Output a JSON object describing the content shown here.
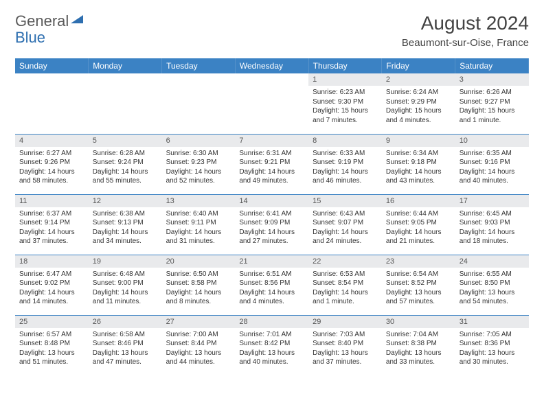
{
  "brand": {
    "part1": "General",
    "part2": "Blue",
    "color1": "#6a6a6a",
    "color2": "#2e6fb0",
    "triangle_color": "#2e6fb0"
  },
  "title": "August 2024",
  "location": "Beaumont-sur-Oise, France",
  "colors": {
    "header_bg": "#3b82c4",
    "header_text": "#ffffff",
    "border": "#3b82c4",
    "daynum_bg": "#e9eaec",
    "text": "#333333"
  },
  "weekdays": [
    "Sunday",
    "Monday",
    "Tuesday",
    "Wednesday",
    "Thursday",
    "Friday",
    "Saturday"
  ],
  "weeks": [
    [
      {
        "empty": true
      },
      {
        "empty": true
      },
      {
        "empty": true
      },
      {
        "empty": true
      },
      {
        "day": "1",
        "sunrise": "Sunrise: 6:23 AM",
        "sunset": "Sunset: 9:30 PM",
        "daylight": "Daylight: 15 hours and 7 minutes."
      },
      {
        "day": "2",
        "sunrise": "Sunrise: 6:24 AM",
        "sunset": "Sunset: 9:29 PM",
        "daylight": "Daylight: 15 hours and 4 minutes."
      },
      {
        "day": "3",
        "sunrise": "Sunrise: 6:26 AM",
        "sunset": "Sunset: 9:27 PM",
        "daylight": "Daylight: 15 hours and 1 minute."
      }
    ],
    [
      {
        "day": "4",
        "sunrise": "Sunrise: 6:27 AM",
        "sunset": "Sunset: 9:26 PM",
        "daylight": "Daylight: 14 hours and 58 minutes."
      },
      {
        "day": "5",
        "sunrise": "Sunrise: 6:28 AM",
        "sunset": "Sunset: 9:24 PM",
        "daylight": "Daylight: 14 hours and 55 minutes."
      },
      {
        "day": "6",
        "sunrise": "Sunrise: 6:30 AM",
        "sunset": "Sunset: 9:23 PM",
        "daylight": "Daylight: 14 hours and 52 minutes."
      },
      {
        "day": "7",
        "sunrise": "Sunrise: 6:31 AM",
        "sunset": "Sunset: 9:21 PM",
        "daylight": "Daylight: 14 hours and 49 minutes."
      },
      {
        "day": "8",
        "sunrise": "Sunrise: 6:33 AM",
        "sunset": "Sunset: 9:19 PM",
        "daylight": "Daylight: 14 hours and 46 minutes."
      },
      {
        "day": "9",
        "sunrise": "Sunrise: 6:34 AM",
        "sunset": "Sunset: 9:18 PM",
        "daylight": "Daylight: 14 hours and 43 minutes."
      },
      {
        "day": "10",
        "sunrise": "Sunrise: 6:35 AM",
        "sunset": "Sunset: 9:16 PM",
        "daylight": "Daylight: 14 hours and 40 minutes."
      }
    ],
    [
      {
        "day": "11",
        "sunrise": "Sunrise: 6:37 AM",
        "sunset": "Sunset: 9:14 PM",
        "daylight": "Daylight: 14 hours and 37 minutes."
      },
      {
        "day": "12",
        "sunrise": "Sunrise: 6:38 AM",
        "sunset": "Sunset: 9:13 PM",
        "daylight": "Daylight: 14 hours and 34 minutes."
      },
      {
        "day": "13",
        "sunrise": "Sunrise: 6:40 AM",
        "sunset": "Sunset: 9:11 PM",
        "daylight": "Daylight: 14 hours and 31 minutes."
      },
      {
        "day": "14",
        "sunrise": "Sunrise: 6:41 AM",
        "sunset": "Sunset: 9:09 PM",
        "daylight": "Daylight: 14 hours and 27 minutes."
      },
      {
        "day": "15",
        "sunrise": "Sunrise: 6:43 AM",
        "sunset": "Sunset: 9:07 PM",
        "daylight": "Daylight: 14 hours and 24 minutes."
      },
      {
        "day": "16",
        "sunrise": "Sunrise: 6:44 AM",
        "sunset": "Sunset: 9:05 PM",
        "daylight": "Daylight: 14 hours and 21 minutes."
      },
      {
        "day": "17",
        "sunrise": "Sunrise: 6:45 AM",
        "sunset": "Sunset: 9:03 PM",
        "daylight": "Daylight: 14 hours and 18 minutes."
      }
    ],
    [
      {
        "day": "18",
        "sunrise": "Sunrise: 6:47 AM",
        "sunset": "Sunset: 9:02 PM",
        "daylight": "Daylight: 14 hours and 14 minutes."
      },
      {
        "day": "19",
        "sunrise": "Sunrise: 6:48 AM",
        "sunset": "Sunset: 9:00 PM",
        "daylight": "Daylight: 14 hours and 11 minutes."
      },
      {
        "day": "20",
        "sunrise": "Sunrise: 6:50 AM",
        "sunset": "Sunset: 8:58 PM",
        "daylight": "Daylight: 14 hours and 8 minutes."
      },
      {
        "day": "21",
        "sunrise": "Sunrise: 6:51 AM",
        "sunset": "Sunset: 8:56 PM",
        "daylight": "Daylight: 14 hours and 4 minutes."
      },
      {
        "day": "22",
        "sunrise": "Sunrise: 6:53 AM",
        "sunset": "Sunset: 8:54 PM",
        "daylight": "Daylight: 14 hours and 1 minute."
      },
      {
        "day": "23",
        "sunrise": "Sunrise: 6:54 AM",
        "sunset": "Sunset: 8:52 PM",
        "daylight": "Daylight: 13 hours and 57 minutes."
      },
      {
        "day": "24",
        "sunrise": "Sunrise: 6:55 AM",
        "sunset": "Sunset: 8:50 PM",
        "daylight": "Daylight: 13 hours and 54 minutes."
      }
    ],
    [
      {
        "day": "25",
        "sunrise": "Sunrise: 6:57 AM",
        "sunset": "Sunset: 8:48 PM",
        "daylight": "Daylight: 13 hours and 51 minutes."
      },
      {
        "day": "26",
        "sunrise": "Sunrise: 6:58 AM",
        "sunset": "Sunset: 8:46 PM",
        "daylight": "Daylight: 13 hours and 47 minutes."
      },
      {
        "day": "27",
        "sunrise": "Sunrise: 7:00 AM",
        "sunset": "Sunset: 8:44 PM",
        "daylight": "Daylight: 13 hours and 44 minutes."
      },
      {
        "day": "28",
        "sunrise": "Sunrise: 7:01 AM",
        "sunset": "Sunset: 8:42 PM",
        "daylight": "Daylight: 13 hours and 40 minutes."
      },
      {
        "day": "29",
        "sunrise": "Sunrise: 7:03 AM",
        "sunset": "Sunset: 8:40 PM",
        "daylight": "Daylight: 13 hours and 37 minutes."
      },
      {
        "day": "30",
        "sunrise": "Sunrise: 7:04 AM",
        "sunset": "Sunset: 8:38 PM",
        "daylight": "Daylight: 13 hours and 33 minutes."
      },
      {
        "day": "31",
        "sunrise": "Sunrise: 7:05 AM",
        "sunset": "Sunset: 8:36 PM",
        "daylight": "Daylight: 13 hours and 30 minutes."
      }
    ]
  ]
}
